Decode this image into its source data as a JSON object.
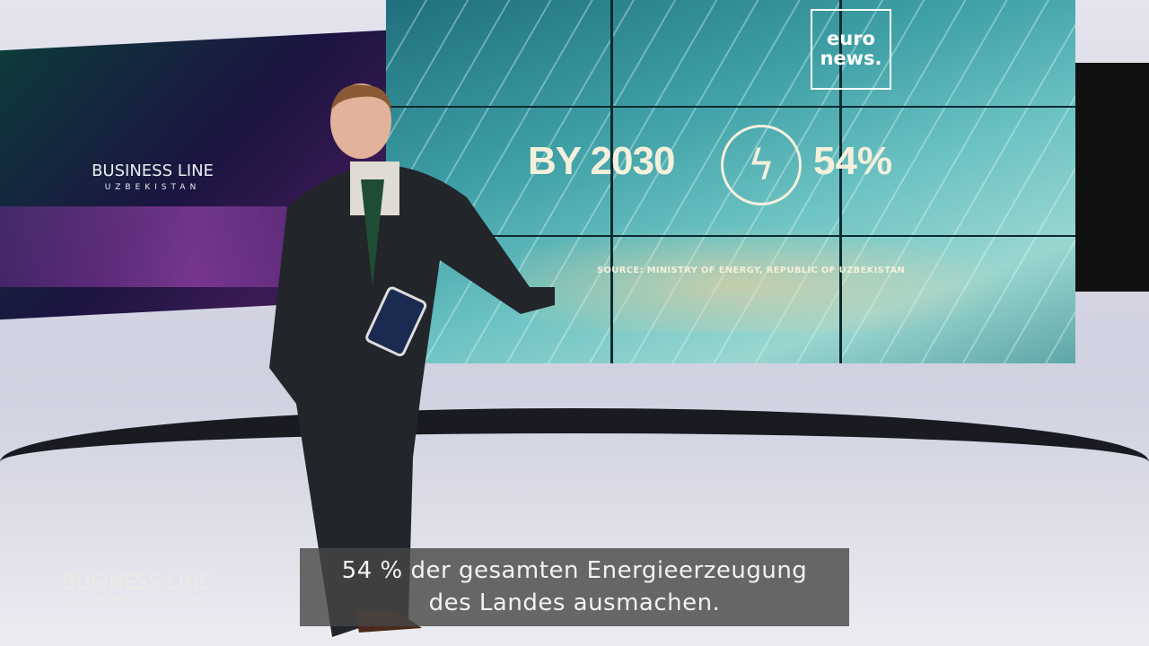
{
  "studio": {
    "left_screen": {
      "title": "BUSINESS LINE",
      "subtitle": "UZBEKISTAN"
    },
    "video_wall": {
      "logo": "euro news.",
      "headline_year": "BY 2030",
      "icon": "lightning-bolt-icon",
      "percentage": "54%",
      "source": "SOURCE: MINISTRY OF ENERGY, REPUBLIC OF UZBEKISTAN"
    }
  },
  "watermark": {
    "title": "BUSINESS LINE",
    "subtitle": "UZBEKISTAN"
  },
  "subtitle": {
    "line1": "54 % der gesamten Energieerzeugung",
    "line2": "des Landes ausmachen."
  }
}
